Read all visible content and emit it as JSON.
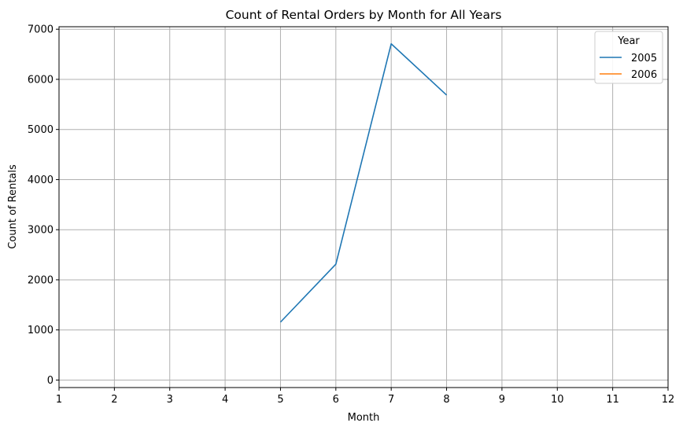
{
  "chart_data": {
    "type": "line",
    "title": "Count of Rental Orders by Month for All Years",
    "xlabel": "Month",
    "ylabel": "Count of Rentals",
    "xlim": [
      1,
      12
    ],
    "ylim": [
      -150,
      7050
    ],
    "x_ticks": [
      "1",
      "2",
      "3",
      "4",
      "5",
      "6",
      "7",
      "8",
      "9",
      "10",
      "11",
      "12"
    ],
    "y_ticks": [
      "0",
      "1000",
      "2000",
      "3000",
      "4000",
      "5000",
      "6000",
      "7000"
    ],
    "grid": true,
    "legend": {
      "title": "Year",
      "placement": "top-right"
    },
    "series": [
      {
        "name": "2005",
        "color": "#1f77b4",
        "x": [
          5,
          6,
          7,
          8
        ],
        "y": [
          1156,
          2311,
          6709,
          5686
        ]
      },
      {
        "name": "2006",
        "color": "#ff7f0e",
        "x": [],
        "y": []
      }
    ]
  }
}
